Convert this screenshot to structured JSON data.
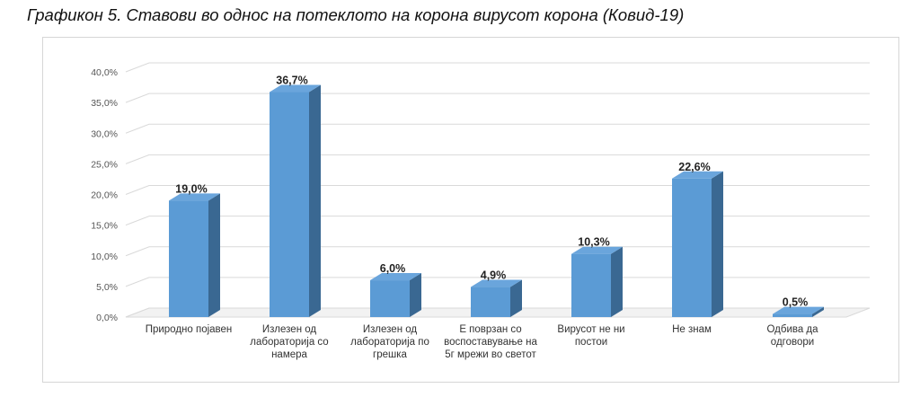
{
  "title": "Графикон 5. Ставови во однос на потеклото на корона вирусот корона (Ковид-19)",
  "chart_data": {
    "type": "bar",
    "categories": [
      "Природно појавен",
      "Излезен од лабораторија со намера",
      "Излезен од лабораторија по грешка",
      "Е поврзан со воспоставување на 5г мрежи во светот",
      "Вирусот не ни постои",
      "Не знам",
      "Одбива да одговори"
    ],
    "values": [
      19.0,
      36.7,
      6.0,
      4.9,
      10.3,
      22.6,
      0.5
    ],
    "value_labels": [
      "19,0%",
      "36,7%",
      "6,0%",
      "4,9%",
      "10,3%",
      "22,6%",
      "0,5%"
    ],
    "y_ticks": [
      "0,0%",
      "5,0%",
      "10,0%",
      "15,0%",
      "20,0%",
      "25,0%",
      "30,0%",
      "35,0%",
      "40,0%"
    ],
    "ylim": [
      0,
      40
    ],
    "grid": true,
    "style": "3d-bar",
    "colors": {
      "bar_front": "#5b9bd5",
      "bar_side": "#3a6892",
      "bar_top": "#6aa5dc",
      "grid": "#d9d9d9"
    }
  }
}
